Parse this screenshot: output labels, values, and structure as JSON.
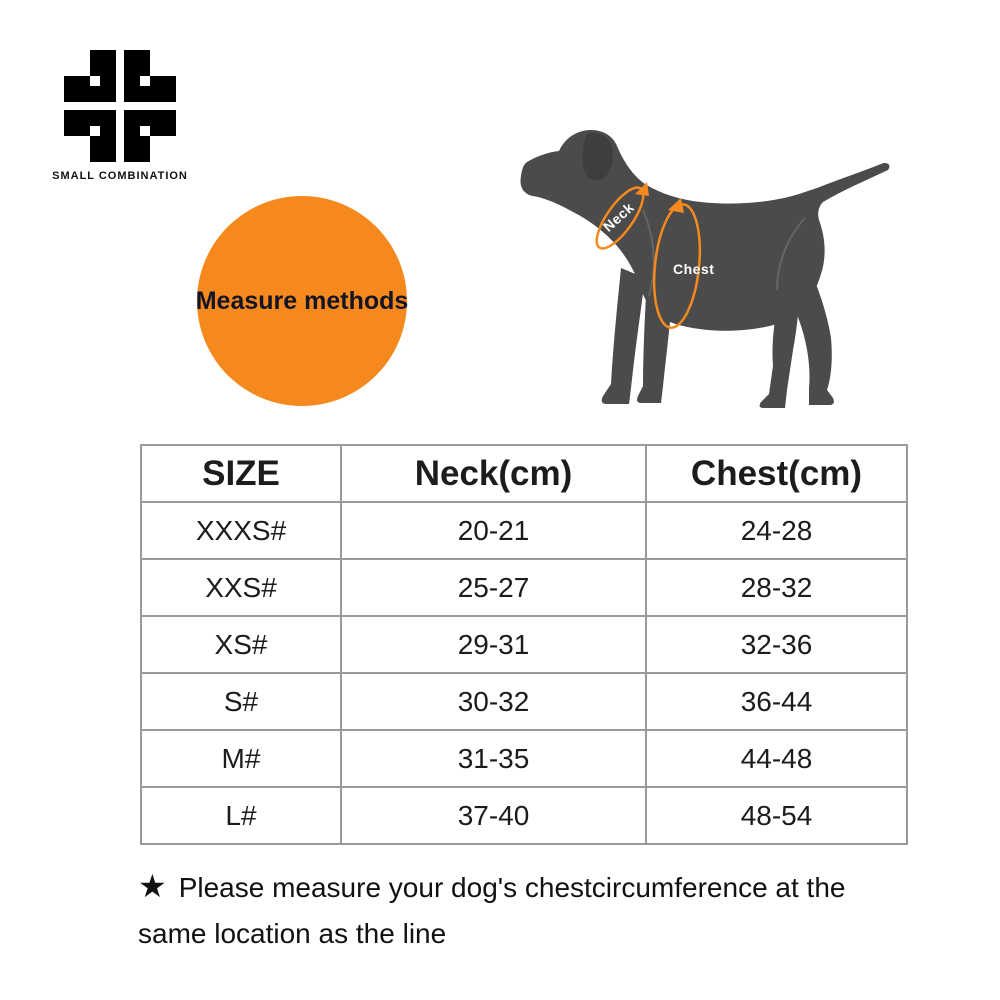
{
  "brand": {
    "name": "SMALL COMBINATION"
  },
  "badge": {
    "label": "Measure methods"
  },
  "diagram": {
    "neck_label": "Neck",
    "chest_label": "Chest"
  },
  "size_table": {
    "headers": [
      "SIZE",
      "Neck(cm)",
      "Chest(cm)"
    ],
    "rows": [
      [
        "XXXS#",
        "20-21",
        "24-28"
      ],
      [
        "XXS#",
        "25-27",
        "28-32"
      ],
      [
        "XS#",
        "29-31",
        "32-36"
      ],
      [
        "S#",
        "30-32",
        "36-44"
      ],
      [
        "M#",
        "31-35",
        "44-48"
      ],
      [
        "L#",
        "37-40",
        "48-54"
      ]
    ]
  },
  "footnote": {
    "star": "★",
    "text": "Please measure your dog's chestcircumference at the same location as the line"
  },
  "colors": {
    "accent": "#F6891E",
    "dog": "#4B4B4B",
    "table_border": "#9A9A9A",
    "logo": "#000000"
  }
}
